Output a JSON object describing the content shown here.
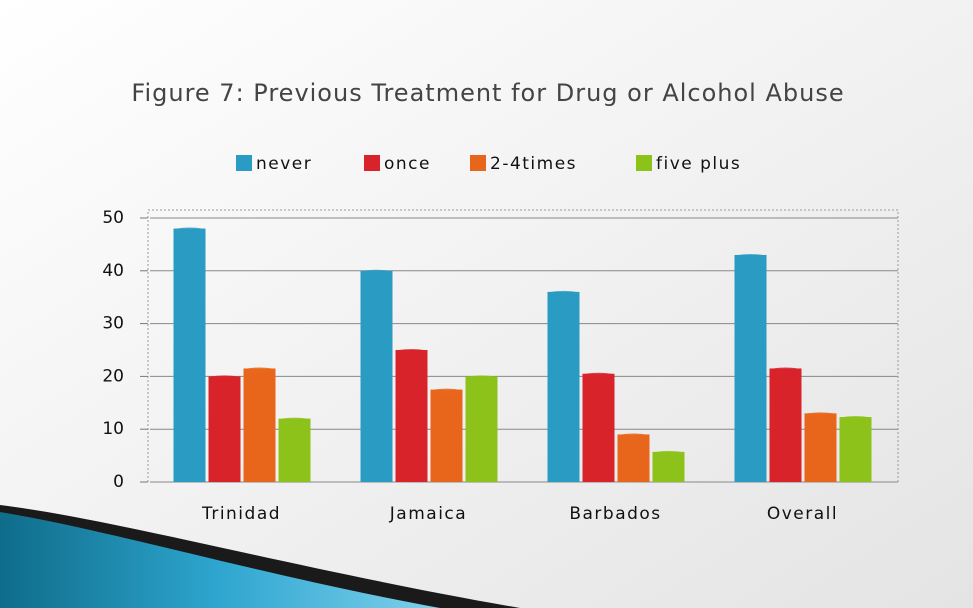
{
  "chart_data": {
    "type": "bar",
    "title": "Figure 7: Previous Treatment for Drug or Alcohol Abuse",
    "categories": [
      "Trinidad",
      "Jamaica",
      "Barbados",
      "Overall"
    ],
    "series": [
      {
        "name": "never",
        "color": "#2a9bc2",
        "values": [
          48,
          40,
          36,
          43
        ]
      },
      {
        "name": "once",
        "color": "#d8232a",
        "values": [
          20,
          25,
          20.5,
          21.5
        ]
      },
      {
        "name": "2-4times",
        "color": "#e8661c",
        "values": [
          21.5,
          17.5,
          9,
          13
        ]
      },
      {
        "name": "five plus",
        "color": "#8dc21b",
        "values": [
          12,
          20,
          5.7,
          12.3
        ]
      }
    ],
    "ylim": [
      0,
      50
    ],
    "yticks": [
      0,
      10,
      20,
      30,
      40,
      50
    ],
    "grid": true,
    "legend": "top"
  }
}
